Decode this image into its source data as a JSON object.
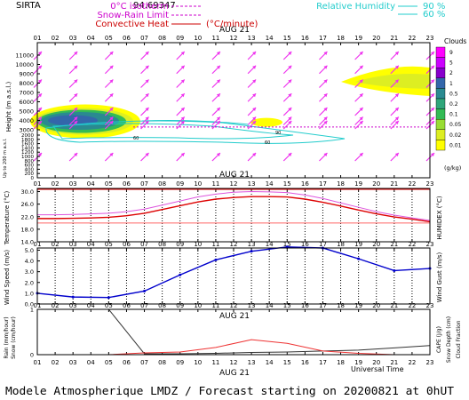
{
  "header": {
    "station": "SIRTA",
    "station_code": "94.69347",
    "legend_left": [
      {
        "label": "0°C isotherm",
        "color": "#cc00cc",
        "style": "dashed"
      },
      {
        "label": "Snow-Rain Limit",
        "color": "#cc00cc",
        "style": "dashed"
      },
      {
        "label": "Convective Heat",
        "color": "#cc0000",
        "style": "solid",
        "unit": "(°C/minute)"
      }
    ],
    "legend_right": {
      "label": "Relative Humidity",
      "levels": [
        "90 %",
        "60 %"
      ],
      "color": "#22cccc"
    }
  },
  "footer": {
    "text": "Modele Atmospherique LMDZ / Forecast starting on 20200821 at 0hUT",
    "time_axis_label": "Universal Time"
  },
  "chart_data": [
    {
      "id": "clouds",
      "type": "heatmap",
      "date_label": "AUG 21",
      "x_hours": [
        "01",
        "02",
        "03",
        "04",
        "05",
        "06",
        "07",
        "08",
        "09",
        "10",
        "11",
        "12",
        "13",
        "14",
        "15",
        "16",
        "17",
        "18",
        "19",
        "20",
        "21",
        "22",
        "23"
      ],
      "ylabel": "Height (m a.s.l.)",
      "yticks_upper": [
        "11000",
        "10000",
        "9000",
        "8000",
        "7000",
        "6000",
        "5000",
        "4000",
        "3000"
      ],
      "yticks_lower": [
        "2000",
        "1800",
        "1600",
        "1400",
        "1200",
        "1000",
        "800",
        "600",
        "400",
        "200",
        "0"
      ],
      "y_note": "Up to 200 m a.s.l.",
      "colorbar": {
        "title": "Clouds",
        "unit": "(g/kg)",
        "levels": [
          "9",
          "5",
          "2",
          "1",
          "0.5",
          "0.2",
          "0.1",
          "0.05",
          "0.02",
          "0.01"
        ],
        "colors": [
          "#ff00ff",
          "#cc00ff",
          "#8800cc",
          "#3366aa",
          "#2a8a90",
          "#2fa67a",
          "#33bb55",
          "#99dd33",
          "#ddee22",
          "#ffff00"
        ]
      },
      "cloud_layers": [
        {
          "hours": [
            1,
            7
          ],
          "height_m": [
            2700,
            4800
          ],
          "max_g_kg": 0.5
        },
        {
          "hours": [
            13,
            14.5
          ],
          "height_m": [
            2300,
            2900
          ],
          "max_g_kg": 0.02
        },
        {
          "hours": [
            19,
            23
          ],
          "height_m": [
            7400,
            9500
          ],
          "max_g_kg": 0.02
        }
      ],
      "rh_contour_labels": [
        "60",
        "90"
      ],
      "isotherm_height_m": 3300,
      "wind_arrows_direction": "from south-west"
    },
    {
      "id": "temperature",
      "type": "line",
      "date_label": "AUG 21",
      "ylabel": "Temperature (°C)",
      "ylabel_right": "HUMIDEX (°C)",
      "yticks": [
        "30.0",
        "26.0",
        "22.0",
        "18.0",
        "14.0"
      ],
      "ylim": [
        14,
        31
      ],
      "x_hours": [
        1,
        2,
        3,
        4,
        5,
        6,
        7,
        8,
        9,
        10,
        11,
        12,
        13,
        14,
        15,
        16,
        17,
        18,
        19,
        20,
        21,
        22,
        23
      ],
      "series": [
        {
          "values": [
            21.4,
            21.4,
            21.5,
            21.6,
            21.8,
            22.3,
            23.1,
            24.3,
            25.5,
            26.7,
            27.6,
            28.1,
            28.4,
            28.4,
            28.3,
            27.6,
            26.6,
            25.4,
            24.1,
            22.9,
            21.9,
            21.2,
            20.4
          ],
          "color": "#dd0000"
        },
        {
          "values": [
            22.6,
            22.6,
            22.7,
            22.9,
            23.1,
            23.6,
            24.4,
            25.7,
            27.0,
            28.3,
            29.2,
            29.8,
            30.0,
            29.9,
            29.7,
            28.9,
            27.8,
            26.4,
            25.0,
            23.6,
            22.5,
            21.6,
            20.8
          ],
          "color": "#dd55dd"
        }
      ],
      "hlines": [
        {
          "value": 30.7,
          "color": "#dd0000"
        },
        {
          "value": 20.0,
          "color": "#ff6666"
        }
      ]
    },
    {
      "id": "wind",
      "type": "line",
      "date_label": "AUG 21",
      "ylabel": "Wind Speed (m/s)",
      "ylabel_right": "Wind Gust (m/s)",
      "yticks": [
        "5.0",
        "4.0",
        "3.0",
        "2.0",
        "1.0",
        "0.0"
      ],
      "ylim": [
        0,
        5.2
      ],
      "x_hours": [
        1,
        3,
        5,
        7,
        9,
        11,
        13,
        15,
        17,
        19,
        21,
        23
      ],
      "series": [
        {
          "values": [
            1.0,
            0.65,
            0.6,
            1.2,
            2.7,
            4.1,
            4.9,
            5.3,
            5.2,
            4.2,
            3.1,
            3.3
          ],
          "color": "#0000cc"
        }
      ]
    },
    {
      "id": "precip",
      "type": "line",
      "date_label": "AUG 21",
      "ylabel_left_1": "Rain (mm/hour)",
      "ylabel_left_2": "Snow (cm/hour)",
      "ylabel_right_1": "CAPE (J/g)",
      "ylabel_right_2": "Snow Depth (cm)",
      "ylabel_right_3": "Cloud Fraction",
      "yticks": [
        "1",
        "0"
      ],
      "ylim": [
        0,
        1
      ],
      "x_hours": [
        1,
        3,
        5,
        7,
        9,
        11,
        13,
        15,
        17,
        19,
        21,
        23
      ],
      "series": [
        {
          "name": "cloud",
          "values": [
            1.0,
            1.0,
            1.0,
            0.02,
            0.02,
            0.03,
            0.05,
            0.06,
            0.08,
            0.1,
            0.15,
            0.2
          ],
          "color": "#333333"
        },
        {
          "name": "cape",
          "values": [
            0,
            0,
            0,
            0.04,
            0.06,
            0.16,
            0.33,
            0.25,
            0.08,
            0.03,
            0,
            0
          ],
          "color": "#ee3333"
        }
      ],
      "xlabel": "Universal Time"
    }
  ]
}
